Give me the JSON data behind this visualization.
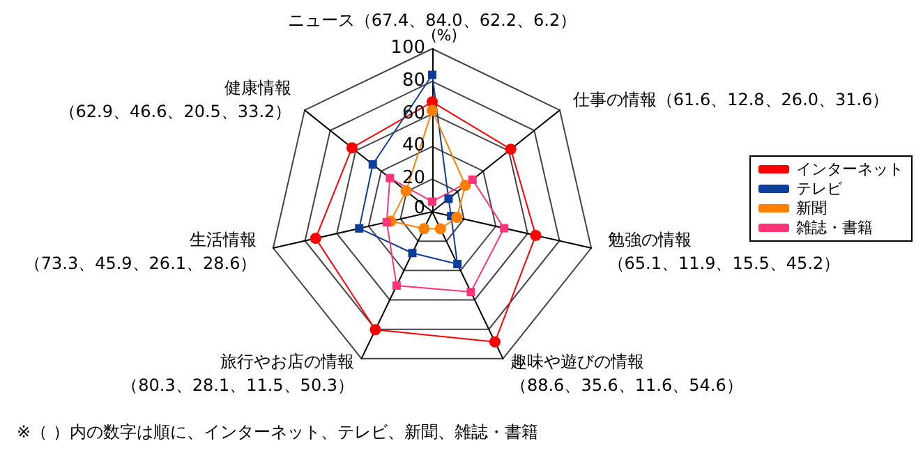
{
  "chart_data": {
    "type": "radar",
    "ylabel": "(%)",
    "categories": [
      "ニュース（67.4、84.0、62.2、6.2）",
      "仕事の情報（61.6、12.8、26.0、31.6）",
      "勉強の情報（65.1、11.9、15.5、45.2）",
      "趣味や遊びの情報（88.6、35.6、11.6、54.6）",
      "旅行やお店の情報（80.3、28.1、11.5、50.3）",
      "生活情報（73.3、45.9、26.1、28.6）",
      "健康情報（62.9、46.6、20.5、33.2）"
    ],
    "series": [
      {
        "name": "インターネット",
        "color": "#ff0000",
        "marker": "circle",
        "values": [
          67.4,
          61.6,
          65.1,
          88.6,
          80.3,
          73.3,
          62.9
        ]
      },
      {
        "name": "テレビ",
        "color": "#0d3d9a",
        "marker": "square",
        "values": [
          84.0,
          12.8,
          11.9,
          35.6,
          28.1,
          45.9,
          46.6
        ]
      },
      {
        "name": "新聞",
        "color": "#ff7f00",
        "marker": "circle",
        "values": [
          62.2,
          26.0,
          15.5,
          11.6,
          11.5,
          26.1,
          20.5
        ]
      },
      {
        "name": "雑誌・書籍",
        "color": "#ff3377",
        "marker": "square",
        "values": [
          6.2,
          31.6,
          45.2,
          54.6,
          50.3,
          28.6,
          33.2
        ]
      }
    ],
    "ylim": [
      0,
      100
    ],
    "yticks": [
      0,
      20,
      40,
      60,
      80,
      100
    ],
    "legend": "right",
    "line_style": "solid",
    "annotations": [
      "※（ ）内の数字は順に、インターネット、テレビ、新聞、雑誌・書籍"
    ]
  }
}
